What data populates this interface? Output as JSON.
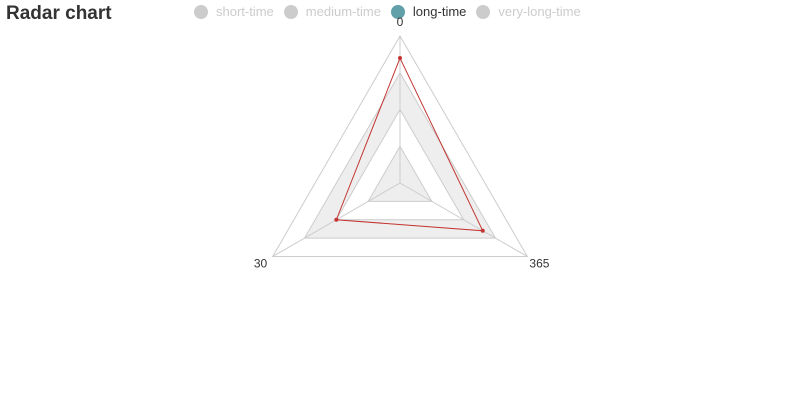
{
  "title": "Radar chart",
  "legend": [
    {
      "label": "short-time",
      "active": false
    },
    {
      "label": "medium-time",
      "active": false
    },
    {
      "label": "long-time",
      "active": true
    },
    {
      "label": "very-long-time",
      "active": false
    }
  ],
  "colors": {
    "active_legend": "#61a0a8",
    "inactive_legend": "#cccccc",
    "series_line": "#c23531",
    "grid_line": "#cccccc",
    "band_fill": "#eeeeee",
    "axis_label": "#333333"
  },
  "chart_data": {
    "type": "radar",
    "title": "Radar chart",
    "indicators": [
      "0",
      "365",
      "30"
    ],
    "max": 1,
    "split_number": 4,
    "series": [
      {
        "name": "long-time",
        "values": [
          0.85,
          0.65,
          0.5
        ]
      }
    ],
    "legend_position": "top"
  }
}
